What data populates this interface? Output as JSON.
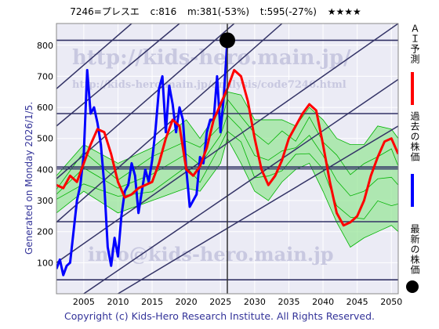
{
  "header": {
    "code_name": "7246=プレスエ",
    "current": "c:816",
    "min": "m:381(-53%)",
    "target": "t:595(-27%)",
    "stars": "★★★★"
  },
  "footer": "Copyright (c) Kids-Hero Research Institute. All Rights Reserved.",
  "generated": "Generated on Monday 2026/1/5.",
  "watermarks": {
    "top": "http://kids-hero.main.jp/",
    "mid": "http://kids-hero.main.jp/analysis/code7246.html",
    "bottom": "info@kids-hero.main.jp"
  },
  "legend": [
    {
      "label": "ＡＩ予測",
      "color": "#ff0000",
      "kind": "line"
    },
    {
      "label": "過去の株価",
      "color": "#0000ff",
      "kind": "line"
    },
    {
      "label": "最新の株価",
      "color": "#000000",
      "kind": "dot"
    }
  ],
  "colors": {
    "background": "#ebebf5",
    "grid": "#ffffff",
    "band_fill": "#99e699",
    "band_fill_light": "#ffffb3",
    "band_lines": "#00b300",
    "hlines": "#333366",
    "channels": "#333366"
  },
  "chart_data": {
    "type": "line",
    "xlim": [
      2001,
      2051
    ],
    "ylim": [
      0,
      870
    ],
    "x_ticks": [
      2005,
      2010,
      2015,
      2020,
      2025,
      2030,
      2035,
      2040,
      2045,
      2050
    ],
    "y_ticks": [
      100,
      200,
      300,
      400,
      500,
      600,
      700,
      800
    ],
    "grid": true,
    "latest_point": {
      "x": 2026.0,
      "y": 816
    },
    "latest_vline_x": 2026.0,
    "horizontal_levels": [
      816,
      580,
      408,
      402,
      232,
      45
    ],
    "channel_lines": [
      {
        "from": [
          2001,
          230
        ],
        "to": [
          2034,
          870
        ]
      },
      {
        "from": [
          2001,
          370
        ],
        "to": [
          2027,
          870
        ]
      },
      {
        "from": [
          2001,
          540
        ],
        "to": [
          2019,
          870
        ]
      },
      {
        "from": [
          2001,
          660
        ],
        "to": [
          2012,
          870
        ]
      },
      {
        "from": [
          2001,
          100
        ],
        "to": [
          2051,
          870
        ]
      },
      {
        "from": [
          2005,
          0
        ],
        "to": [
          2051,
          690
        ]
      },
      {
        "from": [
          2010,
          0
        ],
        "to": [
          2051,
          540
        ]
      }
    ],
    "series": [
      {
        "name": "過去の株価",
        "color": "#0000ff",
        "x": [
          2001,
          2001.5,
          2002,
          2002.5,
          2003,
          2003.5,
          2004,
          2004.5,
          2005,
          2005.5,
          2006,
          2006.5,
          2007,
          2007.5,
          2008,
          2008.5,
          2009,
          2009.5,
          2010,
          2010.5,
          2011,
          2011.5,
          2012,
          2012.5,
          2013,
          2013.5,
          2014,
          2014.5,
          2015,
          2015.5,
          2016,
          2016.5,
          2017,
          2017.5,
          2018,
          2018.5,
          2019,
          2019.5,
          2020,
          2020.5,
          2021,
          2021.5,
          2022,
          2022.5,
          2023,
          2023.5,
          2024,
          2024.5,
          2025,
          2025.5,
          2026
        ],
        "values": [
          80,
          110,
          60,
          90,
          100,
          200,
          300,
          350,
          450,
          720,
          580,
          600,
          550,
          480,
          350,
          150,
          90,
          180,
          120,
          250,
          330,
          350,
          420,
          380,
          260,
          330,
          400,
          360,
          430,
          530,
          660,
          700,
          520,
          670,
          610,
          520,
          600,
          560,
          400,
          280,
          300,
          320,
          440,
          420,
          520,
          560,
          560,
          700,
          520,
          640,
          816
        ]
      },
      {
        "name": "ＡＩ予測",
        "color": "#ff0000",
        "x": [
          2001,
          2002,
          2003,
          2004,
          2005,
          2006,
          2007,
          2008,
          2009,
          2010,
          2011,
          2012,
          2013,
          2014,
          2015,
          2016,
          2017,
          2018,
          2019,
          2020,
          2021,
          2022,
          2023,
          2024,
          2025,
          2026,
          2027,
          2028,
          2029,
          2030,
          2031,
          2032,
          2033,
          2034,
          2035,
          2036,
          2037,
          2038,
          2039,
          2040,
          2041,
          2042,
          2043,
          2044,
          2045,
          2046,
          2047,
          2048,
          2049,
          2050,
          2051
        ],
        "values": [
          350,
          340,
          380,
          360,
          420,
          480,
          530,
          520,
          450,
          360,
          310,
          320,
          340,
          350,
          360,
          420,
          500,
          560,
          540,
          400,
          380,
          410,
          470,
          560,
          610,
          660,
          720,
          700,
          620,
          500,
          400,
          350,
          380,
          430,
          500,
          540,
          580,
          610,
          590,
          480,
          360,
          260,
          220,
          230,
          250,
          300,
          380,
          440,
          490,
          500,
          450
        ]
      }
    ],
    "band_outer": {
      "x": [
        2001,
        2005,
        2010,
        2015,
        2020,
        2022,
        2025,
        2026,
        2028,
        2030,
        2032,
        2034,
        2036,
        2038,
        2040,
        2042,
        2044,
        2046,
        2048,
        2050,
        2051
      ],
      "upper": [
        380,
        480,
        420,
        470,
        560,
        500,
        600,
        650,
        640,
        560,
        560,
        560,
        540,
        600,
        560,
        500,
        480,
        480,
        540,
        530,
        500
      ],
      "lower": [
        260,
        330,
        260,
        300,
        340,
        330,
        420,
        500,
        420,
        330,
        300,
        360,
        400,
        420,
        330,
        230,
        150,
        180,
        200,
        220,
        200
      ]
    }
  }
}
